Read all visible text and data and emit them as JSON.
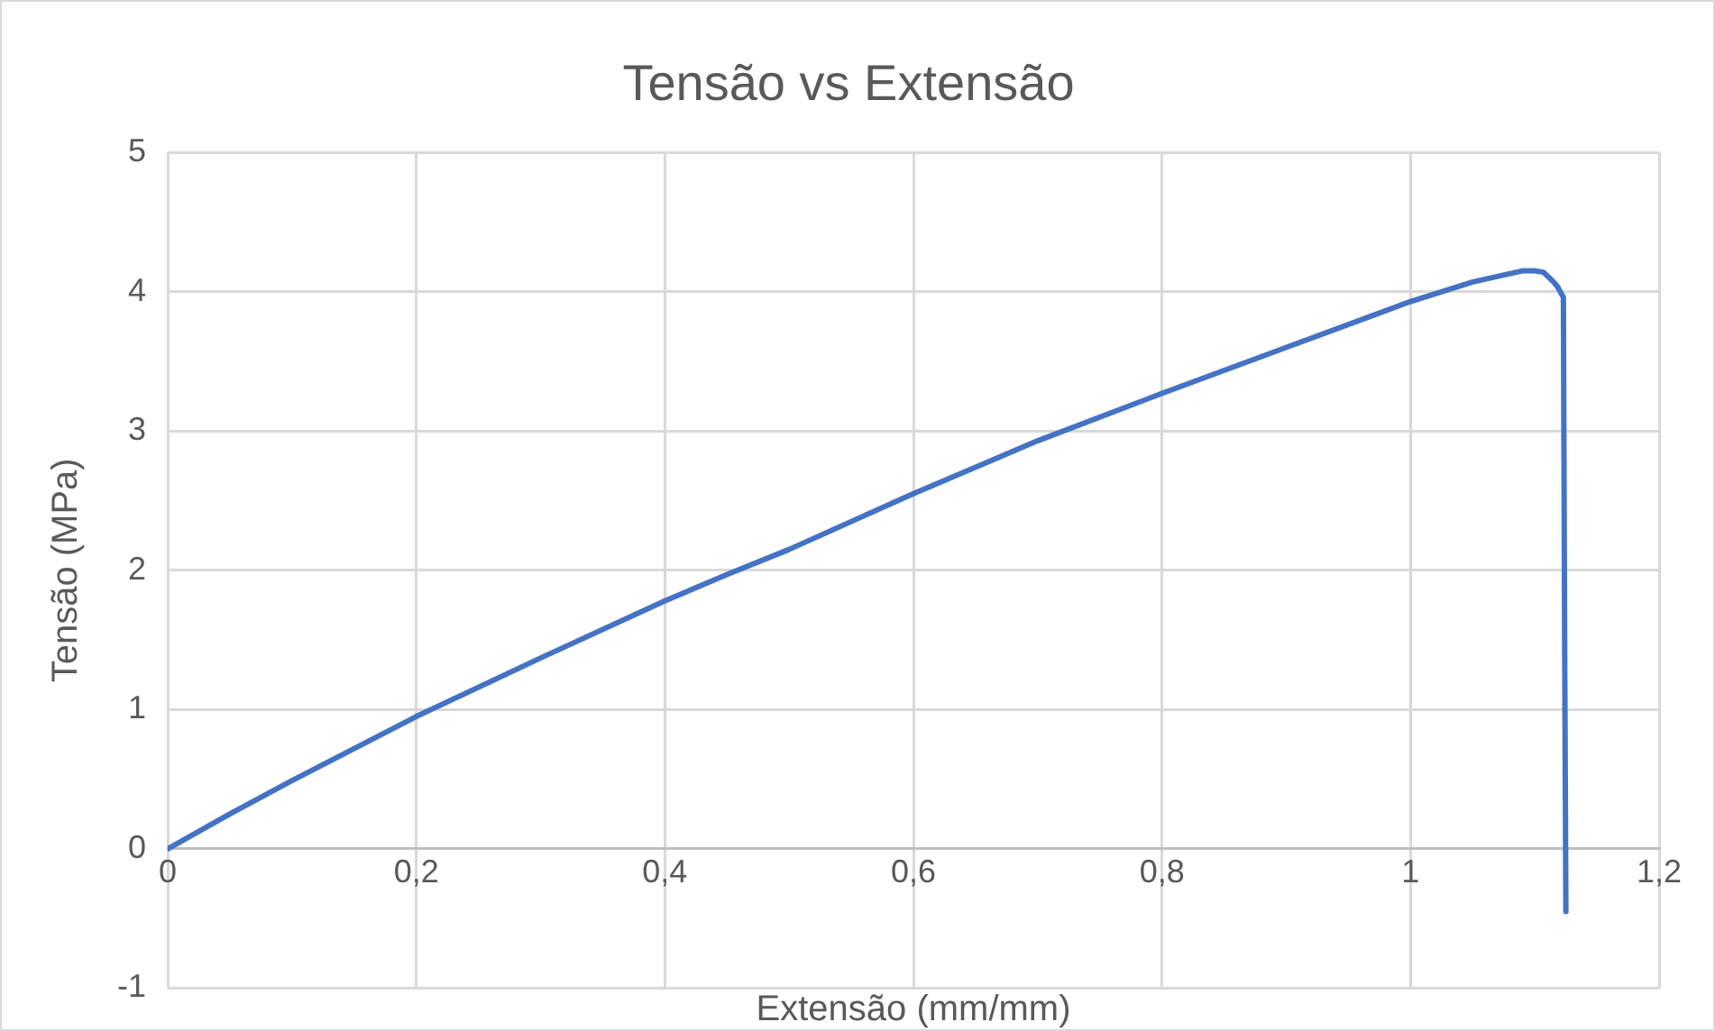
{
  "chart_data": {
    "type": "line",
    "title": "Tensão vs Extensão",
    "xlabel": "Extensão (mm/mm)",
    "ylabel": "Tensão (MPa)",
    "x": [
      0,
      0.05,
      0.1,
      0.15,
      0.2,
      0.3,
      0.4,
      0.45,
      0.5,
      0.6,
      0.7,
      0.8,
      0.9,
      1.0,
      1.05,
      1.08,
      1.09,
      1.1,
      1.107,
      1.114,
      1.118,
      1.123,
      1.124,
      1.125
    ],
    "series": [
      {
        "color": "#4472c4",
        "values": [
          0,
          0.25,
          0.49,
          0.72,
          0.95,
          1.37,
          1.78,
          1.97,
          2.15,
          2.55,
          2.93,
          3.27,
          3.6,
          3.93,
          4.07,
          4.13,
          4.15,
          4.15,
          4.14,
          4.08,
          4.04,
          3.96,
          1.5,
          -0.45
        ]
      }
    ],
    "xlim": [
      0,
      1.2
    ],
    "ylim": [
      -1,
      5
    ],
    "xticks": [
      0,
      {
        "value": 0.2,
        "label": "0,2"
      },
      {
        "value": 0.4,
        "label": "0,4"
      },
      {
        "value": 0.6,
        "label": "0,6"
      },
      {
        "value": 0.8,
        "label": "0,8"
      },
      1,
      {
        "value": 1.2,
        "label": "1,2"
      }
    ],
    "yticks": [
      -1,
      0,
      1,
      2,
      3,
      4,
      5
    ],
    "grid": true,
    "legend": false,
    "marker": "none",
    "line_style": "solid"
  }
}
